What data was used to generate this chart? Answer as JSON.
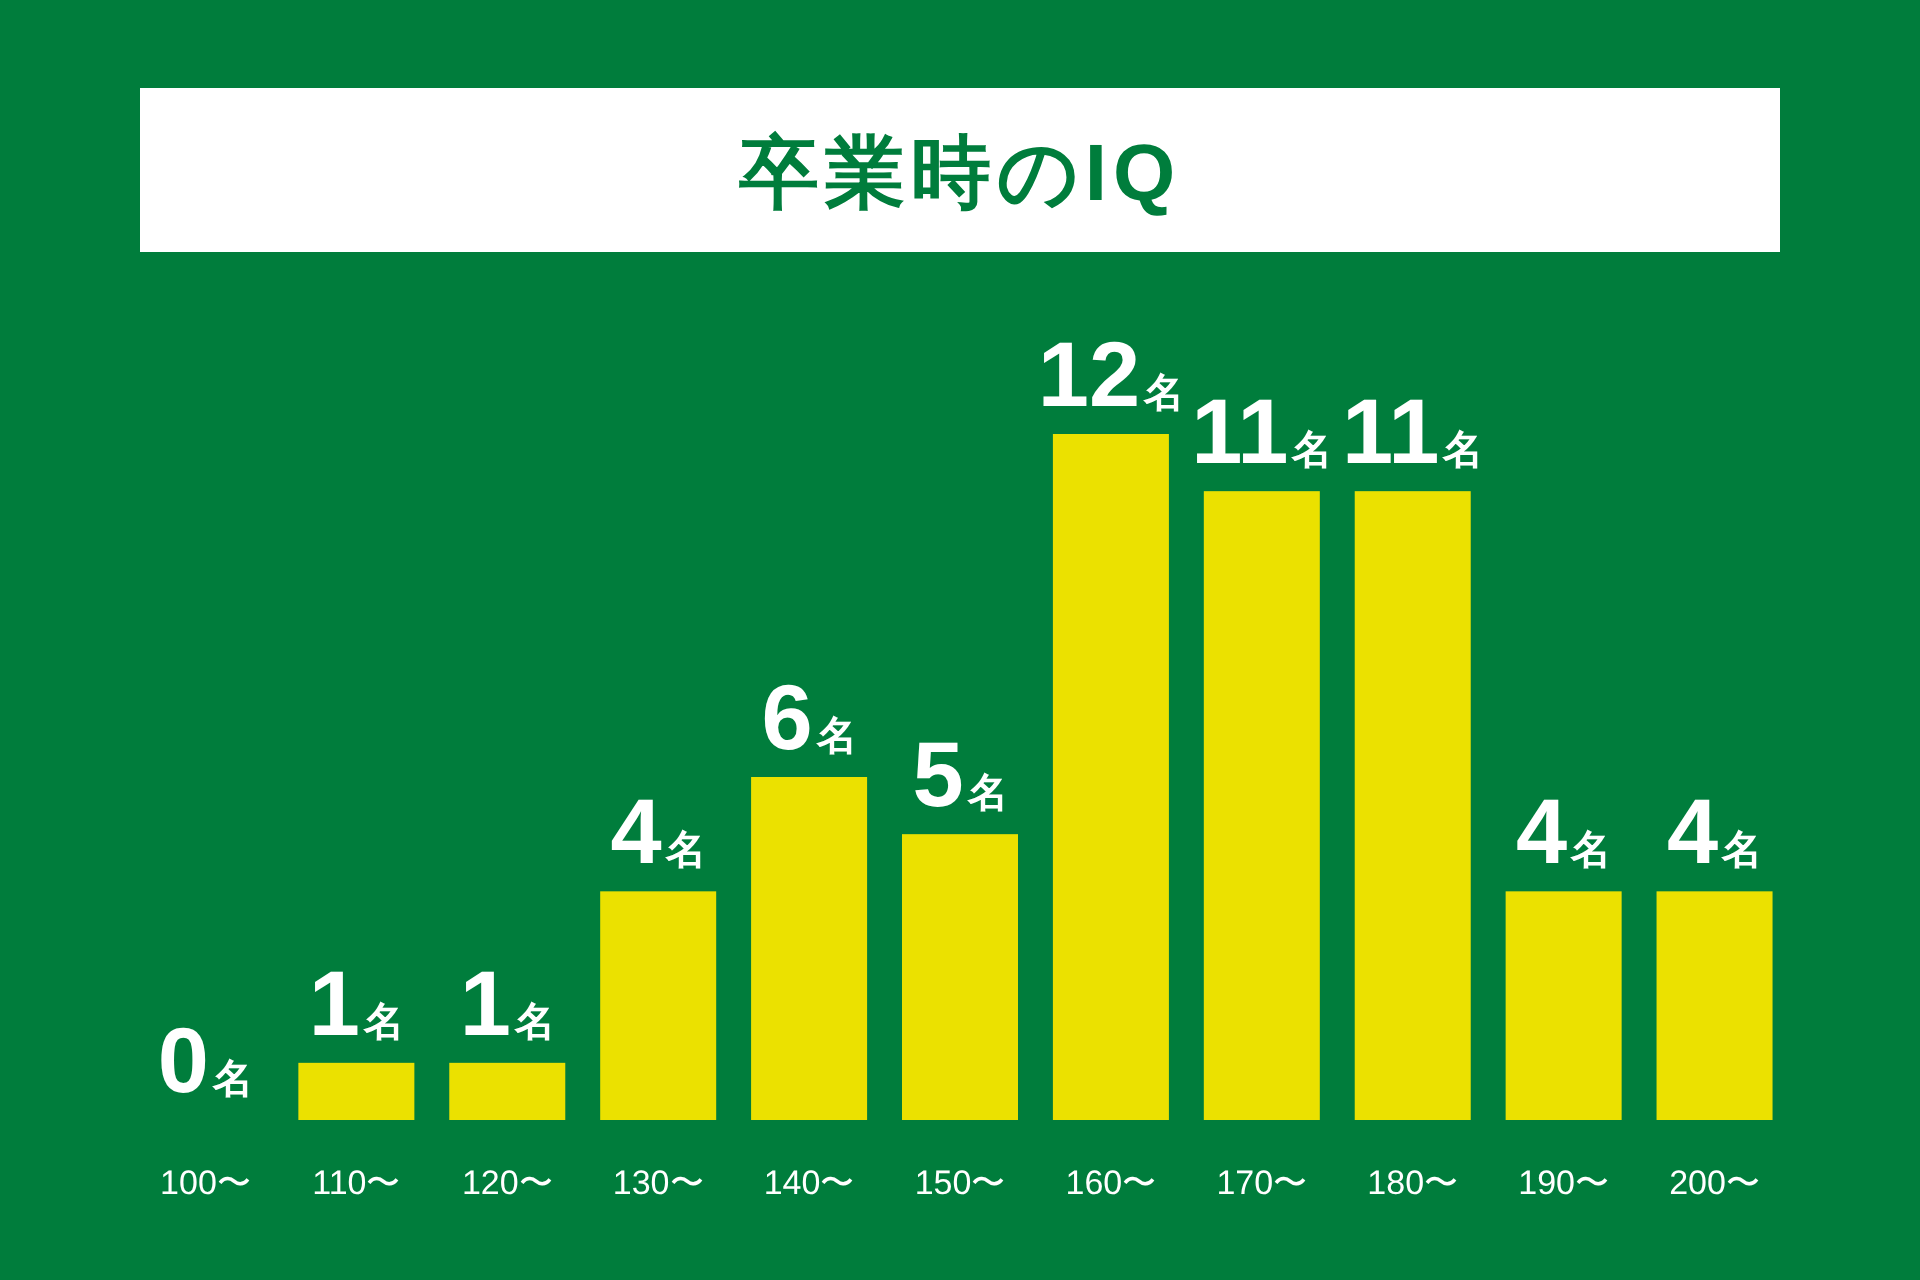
{
  "chart_data": {
    "type": "bar",
    "title": "卒業時のIQ",
    "categories": [
      "100〜",
      "110〜",
      "120〜",
      "130〜",
      "140〜",
      "150〜",
      "160〜",
      "170〜",
      "180〜",
      "190〜",
      "200〜"
    ],
    "values": [
      0,
      1,
      1,
      4,
      6,
      5,
      12,
      11,
      11,
      4,
      4
    ],
    "value_labels": [
      "0名",
      "1名",
      "1名",
      "4名",
      "6名",
      "5名",
      "12名",
      "11名",
      "11名",
      "4名",
      "4名"
    ],
    "color": "#ebe100"
  }
}
